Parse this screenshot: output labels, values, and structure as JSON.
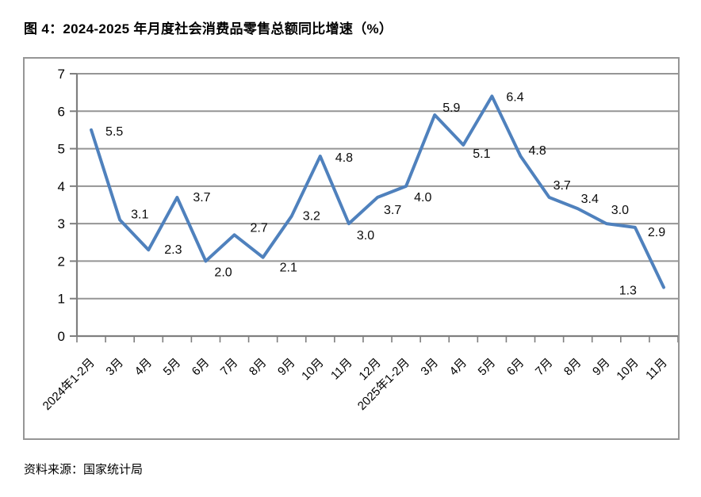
{
  "figure": {
    "title": "图 4：2024-2025 年月度社会消费品零售总额同比增速（%）",
    "source": "资料来源：国家统计局"
  },
  "chart_data": {
    "type": "line",
    "title": "图 4：2024-2025 年月度社会消费品零售总额同比增速（%）",
    "categories": [
      "2024年1-2月",
      "3月",
      "4月",
      "5月",
      "6月",
      "7月",
      "8月",
      "9月",
      "10月",
      "11月",
      "12月",
      "2025年1-2月",
      "3月",
      "4月",
      "5月",
      "6月",
      "7月",
      "8月",
      "9月",
      "10月",
      "11月"
    ],
    "values": [
      5.5,
      3.1,
      2.3,
      3.7,
      2.0,
      2.7,
      2.1,
      3.2,
      4.8,
      3.0,
      3.7,
      4.0,
      5.9,
      5.1,
      6.4,
      4.8,
      3.7,
      3.4,
      3.0,
      2.9,
      1.3
    ],
    "xlabel": "",
    "ylabel": "",
    "ylim": [
      0,
      7
    ],
    "yticks": [
      0,
      1,
      2,
      3,
      4,
      5,
      6,
      7
    ],
    "grid": true,
    "data_labels": true,
    "legend": "none",
    "colors": {
      "line": "#4F81BD",
      "gridline": "#959595",
      "axis": "#7F7F7F",
      "frame": "#969696",
      "label_text": "#0b0b0b"
    }
  }
}
